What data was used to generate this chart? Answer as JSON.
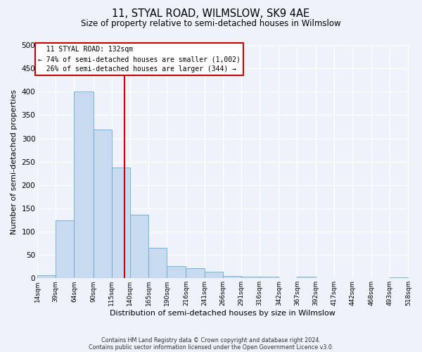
{
  "title": "11, STYAL ROAD, WILMSLOW, SK9 4AE",
  "subtitle": "Size of property relative to semi-detached houses in Wilmslow",
  "xlabel": "Distribution of semi-detached houses by size in Wilmslow",
  "ylabel": "Number of semi-detached properties",
  "bar_color": "#c8daf0",
  "bar_edge_color": "#6aaad4",
  "background_color": "#eef2fa",
  "grid_color": "#ffffff",
  "annotation_box_color": "#ffffff",
  "annotation_box_edge": "#cc0000",
  "vline_color": "#cc0000",
  "footer_line1": "Contains HM Land Registry data © Crown copyright and database right 2024.",
  "footer_line2": "Contains public sector information licensed under the Open Government Licence v3.0.",
  "property_label": "11 STYAL ROAD: 132sqm",
  "pct_smaller": "74% of semi-detached houses are smaller (1,002)",
  "pct_larger": "26% of semi-detached houses are larger (344)",
  "bin_edges": [
    14,
    39,
    64,
    90,
    115,
    140,
    165,
    190,
    216,
    241,
    266,
    291,
    316,
    342,
    367,
    392,
    417,
    442,
    468,
    493,
    518
  ],
  "bin_labels": [
    "14sqm",
    "39sqm",
    "64sqm",
    "90sqm",
    "115sqm",
    "140sqm",
    "165sqm",
    "190sqm",
    "216sqm",
    "241sqm",
    "266sqm",
    "291sqm",
    "316sqm",
    "342sqm",
    "367sqm",
    "392sqm",
    "417sqm",
    "442sqm",
    "468sqm",
    "493sqm",
    "518sqm"
  ],
  "counts": [
    7,
    124,
    400,
    319,
    238,
    136,
    65,
    26,
    21,
    14,
    5,
    4,
    3,
    0,
    3,
    0,
    0,
    0,
    0,
    2
  ],
  "property_value": 132,
  "ylim": [
    0,
    500
  ],
  "yticks": [
    0,
    50,
    100,
    150,
    200,
    250,
    300,
    350,
    400,
    450,
    500
  ]
}
